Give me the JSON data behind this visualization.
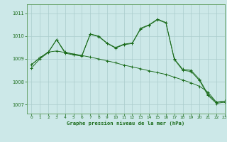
{
  "title": "Graphe pression niveau de la mer (hPa)",
  "background_color": "#cce8e8",
  "grid_color": "#aacccc",
  "line_color": "#1a6b1a",
  "xlim": [
    -0.5,
    23
  ],
  "ylim": [
    1006.6,
    1011.4
  ],
  "yticks": [
    1007,
    1008,
    1009,
    1010,
    1011
  ],
  "xticks": [
    0,
    1,
    2,
    3,
    4,
    5,
    6,
    7,
    8,
    9,
    10,
    11,
    12,
    13,
    14,
    15,
    16,
    17,
    18,
    19,
    20,
    21,
    22,
    23
  ],
  "series": [
    {
      "x": [
        0,
        1,
        2,
        3,
        4,
        5,
        6,
        7,
        8,
        9,
        10,
        11,
        12,
        13,
        14,
        15,
        16,
        17,
        18,
        19,
        20,
        21,
        22,
        23
      ],
      "y": [
        1008.75,
        1009.05,
        1009.3,
        1009.85,
        1009.3,
        1009.2,
        1009.15,
        1010.1,
        1010.0,
        1009.7,
        1009.5,
        1009.65,
        1009.7,
        1010.35,
        1010.5,
        1010.75,
        1010.6,
        1009.0,
        1008.55,
        1008.5,
        1008.1,
        1007.45,
        1007.1,
        1007.15
      ]
    },
    {
      "x": [
        0,
        1,
        2,
        3,
        4,
        5,
        6,
        7,
        8,
        9,
        10,
        11,
        12,
        13,
        14,
        15,
        16,
        17,
        18,
        19,
        20,
        21,
        22,
        23
      ],
      "y": [
        1008.75,
        1009.05,
        1009.3,
        1009.35,
        1009.28,
        1009.22,
        1009.15,
        1009.08,
        1009.0,
        1008.92,
        1008.83,
        1008.73,
        1008.65,
        1008.57,
        1008.48,
        1008.4,
        1008.32,
        1008.2,
        1008.08,
        1007.95,
        1007.8,
        1007.55,
        1007.1,
        1007.15
      ]
    },
    {
      "x": [
        0,
        1,
        2,
        3,
        4,
        5,
        6,
        7,
        8,
        9,
        10,
        11,
        12,
        13,
        14,
        15,
        16,
        17,
        18,
        19,
        20,
        21,
        22,
        23
      ],
      "y": [
        1008.6,
        1009.0,
        1009.28,
        1009.85,
        1009.25,
        1009.18,
        1009.12,
        1010.08,
        1009.98,
        1009.68,
        1009.48,
        1009.62,
        1009.68,
        1010.32,
        1010.48,
        1010.72,
        1010.58,
        1008.98,
        1008.5,
        1008.45,
        1008.05,
        1007.4,
        1007.05,
        1007.1
      ]
    }
  ]
}
